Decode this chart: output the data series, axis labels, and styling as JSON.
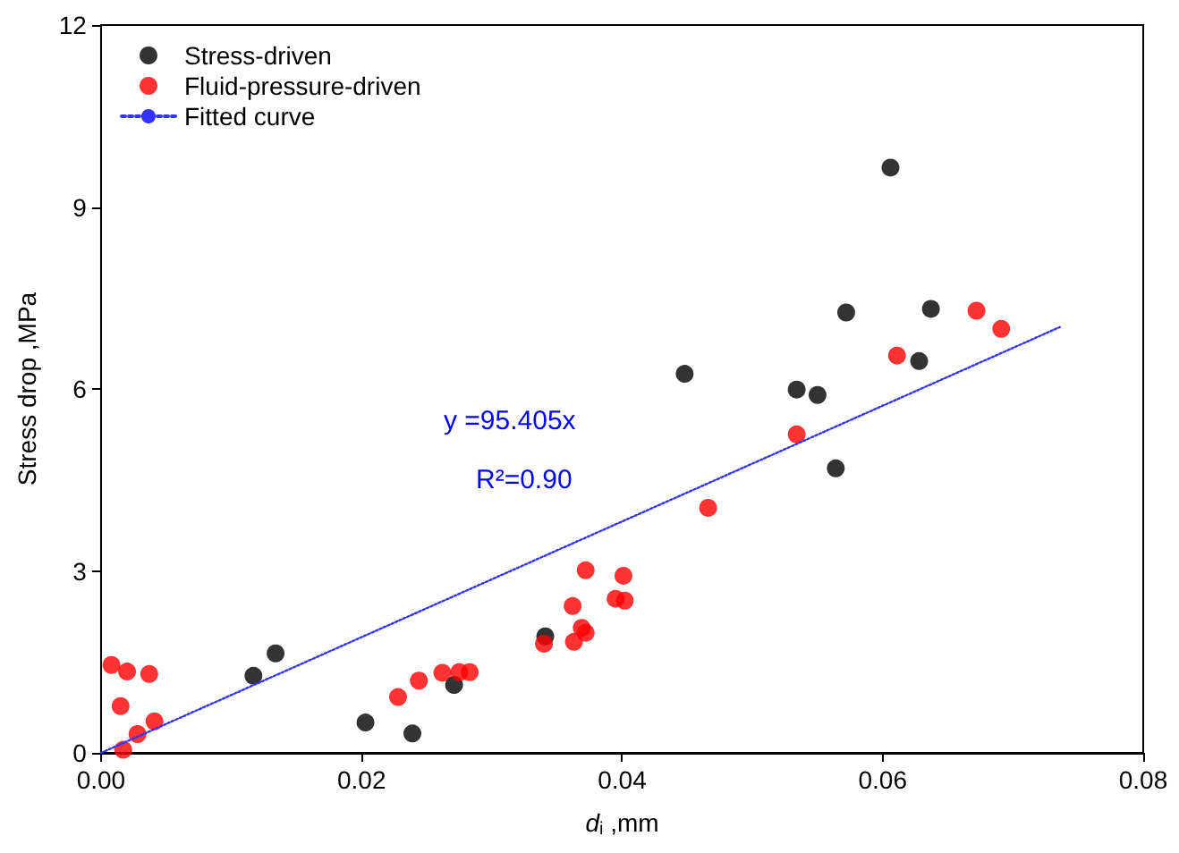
{
  "chart_data": {
    "type": "scatter",
    "xlabel": "d$_{i}$ ,mm",
    "ylabel": "Stress drop ,MPa",
    "xlim": [
      0,
      0.08
    ],
    "xticks": [
      {
        "value": 0,
        "label": "0.00"
      },
      {
        "value": 0.02,
        "label": "0.02"
      },
      {
        "value": 0.04,
        "label": "0.04"
      },
      {
        "value": 0.06,
        "label": "0.06"
      },
      {
        "value": 0.08,
        "label": "0.08"
      }
    ],
    "ylim": [
      0,
      12
    ],
    "yticks": [
      0,
      3,
      6,
      9,
      12
    ],
    "grid": false,
    "legend": "top left",
    "marker": "circle",
    "annotations": [
      "y =95.405x",
      "R²=0.90"
    ],
    "series": [
      {
        "name": "Stress-driven",
        "color": "#000000",
        "x": [
          0.0117,
          0.0134,
          0.0203,
          0.0239,
          0.0271,
          0.0341,
          0.0448,
          0.0534,
          0.055,
          0.0564,
          0.0572,
          0.0606,
          0.0628,
          0.0637
        ],
        "values": [
          1.27,
          1.64,
          0.5,
          0.32,
          1.12,
          1.92,
          6.25,
          5.99,
          5.9,
          4.69,
          7.26,
          9.65,
          6.46,
          7.32
        ]
      },
      {
        "name": "Fluid-pressure-driven",
        "color": "#ff0000",
        "x": [
          0.0008,
          0.002,
          0.0037,
          0.0015,
          0.0041,
          0.0028,
          0.0017,
          0.0228,
          0.0244,
          0.0262,
          0.0275,
          0.0283,
          0.034,
          0.0363,
          0.0362,
          0.0369,
          0.0372,
          0.0372,
          0.0395,
          0.0402,
          0.0401,
          0.0466,
          0.0534,
          0.0611,
          0.0672,
          0.0691
        ],
        "values": [
          1.45,
          1.34,
          1.3,
          0.77,
          0.52,
          0.31,
          0.05,
          0.92,
          1.19,
          1.32,
          1.33,
          1.33,
          1.8,
          1.83,
          2.42,
          2.06,
          1.98,
          3.01,
          2.54,
          2.51,
          2.92,
          4.04,
          5.25,
          6.55,
          7.29,
          6.99
        ]
      },
      {
        "name": "Fitted curve",
        "type": "line",
        "color": "#3333ff",
        "line_style": "dotted",
        "marker": "none",
        "x": [
          0,
          0.0736
        ],
        "values": [
          0,
          7.02
        ]
      }
    ]
  }
}
